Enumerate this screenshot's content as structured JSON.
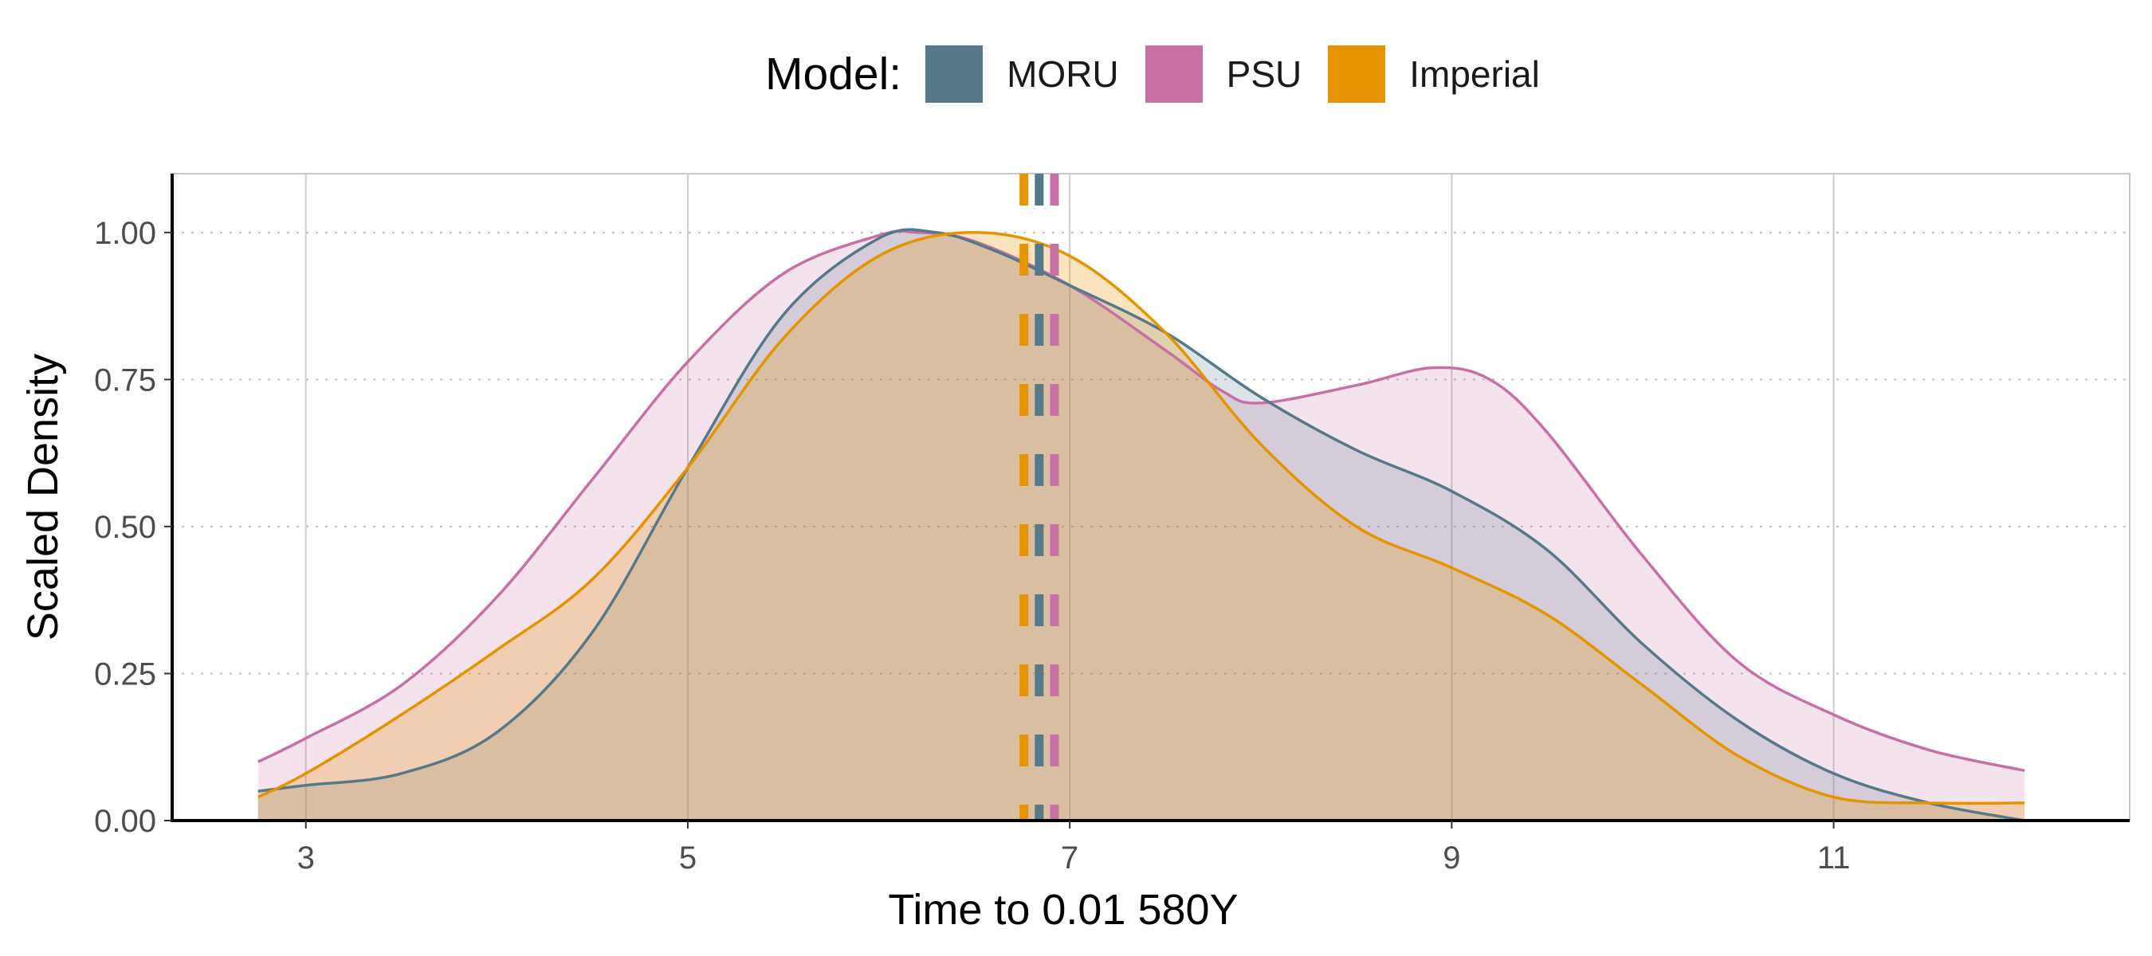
{
  "legend": {
    "title": "Model:",
    "items": [
      {
        "label": "MORU",
        "color": "#56798A"
      },
      {
        "label": "PSU",
        "color": "#C86FA6"
      },
      {
        "label": "Imperial",
        "color": "#E69300"
      }
    ]
  },
  "chart_data": {
    "type": "area",
    "xlabel": "Time to 0.01 580Y",
    "ylabel": "Scaled Density",
    "xlim": [
      2.3,
      12.55
    ],
    "ylim": [
      0,
      1.1
    ],
    "xticks": [
      3,
      5,
      7,
      9,
      11
    ],
    "yticks": [
      0.0,
      0.25,
      0.5,
      0.75,
      1.0
    ],
    "ytick_labels": [
      "0.00",
      "0.25",
      "0.50",
      "0.75",
      "1.00"
    ],
    "grid": true,
    "legend_position": "top",
    "series": [
      {
        "name": "MORU",
        "color": "#56798A",
        "fill_opacity": 0.2,
        "median": 6.84,
        "points": [
          [
            2.75,
            0.05
          ],
          [
            3.0,
            0.06
          ],
          [
            3.5,
            0.08
          ],
          [
            4.0,
            0.15
          ],
          [
            4.5,
            0.32
          ],
          [
            5.0,
            0.6
          ],
          [
            5.5,
            0.86
          ],
          [
            6.0,
            0.99
          ],
          [
            6.3,
            1.0
          ],
          [
            6.6,
            0.97
          ],
          [
            7.0,
            0.91
          ],
          [
            7.5,
            0.83
          ],
          [
            8.0,
            0.72
          ],
          [
            8.5,
            0.63
          ],
          [
            9.0,
            0.56
          ],
          [
            9.5,
            0.46
          ],
          [
            10.0,
            0.3
          ],
          [
            10.5,
            0.17
          ],
          [
            11.0,
            0.08
          ],
          [
            11.5,
            0.03
          ],
          [
            12.0,
            0.0
          ]
        ]
      },
      {
        "name": "PSU",
        "color": "#C86FA6",
        "fill_opacity": 0.2,
        "median": 6.92,
        "points": [
          [
            2.75,
            0.1
          ],
          [
            3.0,
            0.14
          ],
          [
            3.5,
            0.23
          ],
          [
            4.0,
            0.38
          ],
          [
            4.5,
            0.58
          ],
          [
            5.0,
            0.78
          ],
          [
            5.5,
            0.93
          ],
          [
            6.0,
            0.995
          ],
          [
            6.2,
            1.0
          ],
          [
            6.5,
            0.985
          ],
          [
            7.0,
            0.91
          ],
          [
            7.5,
            0.8
          ],
          [
            7.8,
            0.73
          ],
          [
            8.0,
            0.71
          ],
          [
            8.5,
            0.74
          ],
          [
            8.9,
            0.77
          ],
          [
            9.2,
            0.75
          ],
          [
            9.5,
            0.66
          ],
          [
            10.0,
            0.45
          ],
          [
            10.5,
            0.27
          ],
          [
            11.0,
            0.18
          ],
          [
            11.5,
            0.12
          ],
          [
            12.0,
            0.085
          ]
        ]
      },
      {
        "name": "Imperial",
        "color": "#E69300",
        "fill_opacity": 0.25,
        "median": 6.76,
        "points": [
          [
            2.75,
            0.04
          ],
          [
            3.0,
            0.08
          ],
          [
            3.5,
            0.18
          ],
          [
            4.0,
            0.29
          ],
          [
            4.5,
            0.41
          ],
          [
            5.0,
            0.6
          ],
          [
            5.5,
            0.82
          ],
          [
            6.0,
            0.96
          ],
          [
            6.5,
            1.0
          ],
          [
            7.0,
            0.96
          ],
          [
            7.5,
            0.83
          ],
          [
            8.0,
            0.64
          ],
          [
            8.5,
            0.5
          ],
          [
            9.0,
            0.43
          ],
          [
            9.5,
            0.35
          ],
          [
            10.0,
            0.23
          ],
          [
            10.5,
            0.11
          ],
          [
            11.0,
            0.04
          ],
          [
            11.5,
            0.03
          ],
          [
            12.0,
            0.03
          ]
        ]
      }
    ]
  }
}
